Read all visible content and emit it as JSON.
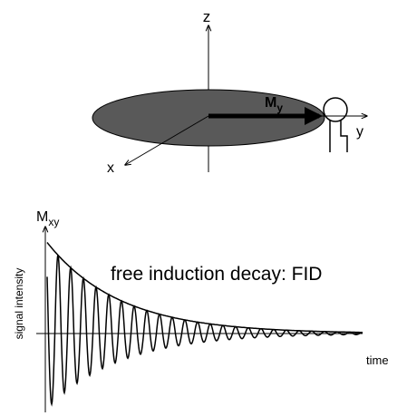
{
  "labels": {
    "z": "z",
    "my_main": "M",
    "my_sub": "y",
    "y_axis": "y",
    "x_axis": "x",
    "mxy_main": "M",
    "mxy_sub": "xy",
    "signal": "signal intensity",
    "fid": "free induction decay: FID",
    "time": "time"
  }
}
